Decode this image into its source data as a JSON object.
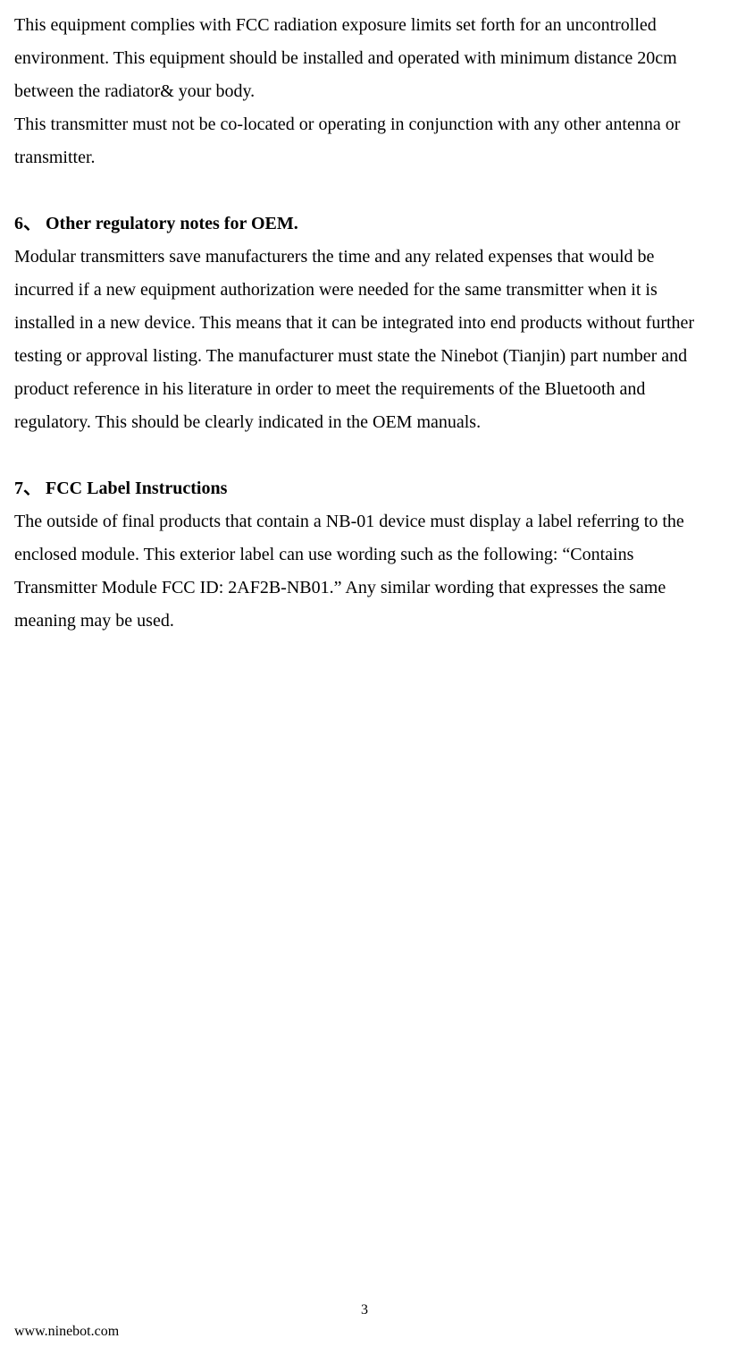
{
  "intro": {
    "p1": "This equipment complies with FCC radiation exposure limits set forth for an uncontrolled environment. This equipment should be installed and operated with minimum distance 20cm between the radiator& your body.",
    "p2": "This transmitter must not be co-located or operating in conjunction with any other antenna or transmitter."
  },
  "section6": {
    "heading": "6、 Other regulatory notes for OEM.",
    "body": "Modular transmitters save manufacturers the time and any related expenses that would be incurred if a new equipment authorization were needed for the same transmitter when it is installed in a new device. This means that it can be integrated into end products without further testing or approval listing. The manufacturer must state the Ninebot (Tianjin) part number and product reference in his literature in order to meet the requirements of the Bluetooth and regulatory. This should be clearly indicated in the OEM manuals."
  },
  "section7": {
    "heading": "7、 FCC Label Instructions",
    "body": "The outside of final products that contain a NB-01 device must display a label referring to the enclosed module.   This exterior label can use wording such as the following: “Contains Transmitter Module FCC ID: 2AF2B-NB01.” Any similar wording that expresses the same meaning may be used."
  },
  "footer": {
    "page_number": "3",
    "website": "www.ninebot.com"
  }
}
